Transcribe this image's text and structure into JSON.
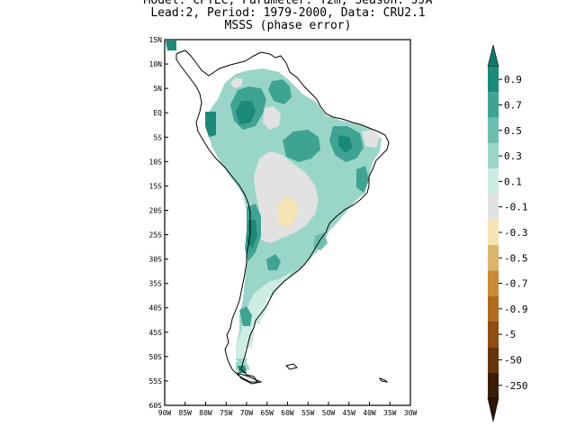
{
  "title": {
    "line1": "Model: CPTEC, Parameter: T2m, Season: JJA",
    "line2": "Lead:2, Period: 1979-2000, Data: CRU2.1",
    "line3": "MSSS (phase error)"
  },
  "axes": {
    "lat_labels": [
      "15N",
      "10N",
      "5N",
      "EQ",
      "5S",
      "10S",
      "15S",
      "20S",
      "25S",
      "30S",
      "35S",
      "40S",
      "45S",
      "50S",
      "55S",
      "60S"
    ],
    "lat_values": [
      15,
      10,
      5,
      0,
      -5,
      -10,
      -15,
      -20,
      -25,
      -30,
      -35,
      -40,
      -45,
      -50,
      -55,
      -60
    ],
    "lon_labels": [
      "90W",
      "85W",
      "80W",
      "75W",
      "70W",
      "65W",
      "60W",
      "55W",
      "50W",
      "45W",
      "40W",
      "35W",
      "30W"
    ],
    "lon_values": [
      -90,
      -85,
      -80,
      -75,
      -70,
      -65,
      -60,
      -55,
      -50,
      -45,
      -40,
      -35,
      -30
    ],
    "lat_range": [
      -60,
      15
    ],
    "lon_range": [
      -90,
      -30
    ]
  },
  "colorbar": {
    "labels": [
      "0.9",
      "0.7",
      "0.5",
      "0.3",
      "0.1",
      "-0.1",
      "-0.3",
      "-0.5",
      "-0.7",
      "-0.9",
      "-5",
      "-50",
      "-250"
    ],
    "colors": [
      "#1b8a78",
      "#3fa392",
      "#6cbeae",
      "#9ad6c8",
      "#cdece4",
      "#e2e2e2",
      "#f6e4b4",
      "#dcb56c",
      "#c98b35",
      "#b06b1e",
      "#8e4f10",
      "#653408",
      "#3a1e04"
    ],
    "top_arrow_color": "#0f7a68",
    "bottom_arrow_color": "#2a1602"
  },
  "map_colors": {
    "land_outline": "#000000",
    "frame": "#000000",
    "background": "#ffffff"
  }
}
